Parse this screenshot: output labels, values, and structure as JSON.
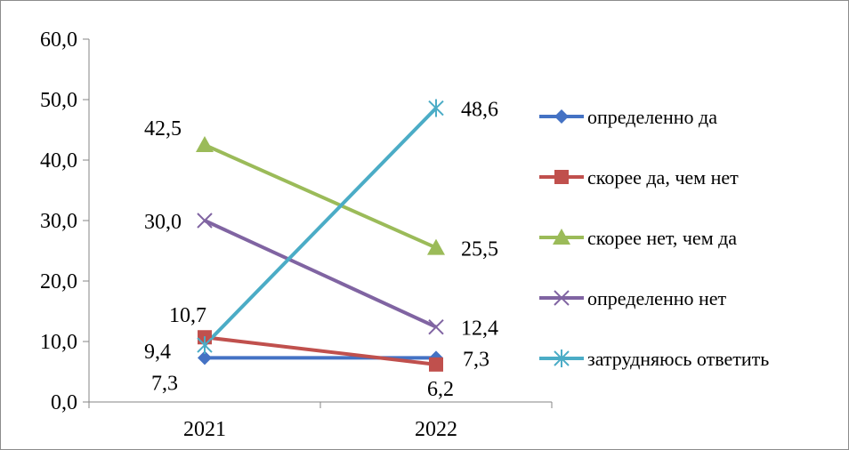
{
  "chart_data": {
    "type": "line",
    "categories": [
      "2021",
      "2022"
    ],
    "ylim": [
      0,
      60
    ],
    "yticks": [
      0,
      10,
      20,
      30,
      40,
      50,
      60
    ],
    "ytick_labels": [
      "0,0",
      "10,0",
      "20,0",
      "30,0",
      "40,0",
      "50,0",
      "60,0"
    ],
    "legend_position": "right",
    "grid": false,
    "series": [
      {
        "name": "определенно да",
        "values": [
          7.3,
          7.3
        ],
        "labels": [
          "7,3",
          "7,3"
        ],
        "color": "#4472C4",
        "marker": "diamond"
      },
      {
        "name": "скорее да, чем нет",
        "values": [
          10.7,
          6.2
        ],
        "labels": [
          "10,7",
          "6,2"
        ],
        "color": "#C0504D",
        "marker": "square"
      },
      {
        "name": "скорее нет, чем да",
        "values": [
          42.5,
          25.5
        ],
        "labels": [
          "42,5",
          "25,5"
        ],
        "color": "#9BBB59",
        "marker": "triangle"
      },
      {
        "name": "определенно нет",
        "values": [
          30.0,
          12.4
        ],
        "labels": [
          "30,0",
          "12,4"
        ],
        "color": "#8064A2",
        "marker": "x"
      },
      {
        "name": "затрудняюсь ответить",
        "values": [
          9.4,
          48.6
        ],
        "labels": [
          "9,4",
          "48,6"
        ],
        "color": "#4BACC6",
        "marker": "star"
      }
    ]
  }
}
